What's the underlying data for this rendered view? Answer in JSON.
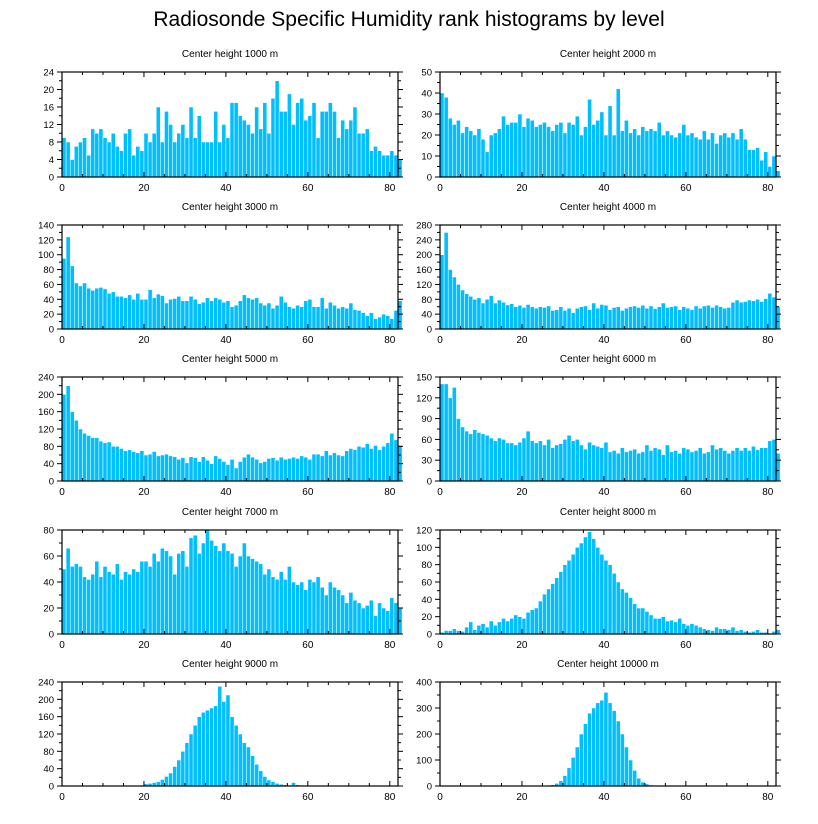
{
  "title": "Radiosonde Specific Humidity rank histograms by level",
  "colors": {
    "bar": "#00BFFF",
    "bar_edge": "#ffffff",
    "axis": "#000000",
    "background": "#ffffff"
  },
  "chart_data": [
    {
      "type": "bar",
      "title": "Center height 1000 m",
      "xlim": [
        0,
        82
      ],
      "ylim": [
        0,
        24
      ],
      "xticks": [
        0,
        20,
        40,
        60,
        80
      ],
      "yticks": [
        0,
        4,
        8,
        12,
        16,
        20,
        24
      ],
      "values": [
        9,
        8,
        4,
        7,
        8,
        9,
        5,
        11,
        10,
        11,
        9,
        8,
        10,
        7,
        6,
        10,
        11,
        5,
        7,
        6,
        10,
        8,
        10,
        16,
        8,
        15,
        12,
        8,
        10,
        12,
        9,
        16,
        9,
        14,
        8,
        8,
        8,
        15,
        8,
        12,
        9,
        17,
        17,
        14,
        13,
        12,
        10,
        16,
        11,
        17,
        10,
        18,
        22,
        15,
        15,
        19,
        12,
        17,
        18,
        13,
        14,
        17,
        9,
        15,
        15,
        17,
        15,
        9,
        13,
        11,
        13,
        16,
        10,
        10,
        11,
        6,
        7,
        6,
        5,
        5,
        6,
        5,
        4
      ]
    },
    {
      "type": "bar",
      "title": "Center height 2000 m",
      "xlim": [
        0,
        82
      ],
      "ylim": [
        0,
        50
      ],
      "xticks": [
        0,
        20,
        40,
        60,
        80
      ],
      "yticks": [
        0,
        10,
        20,
        30,
        40,
        50
      ],
      "values": [
        40,
        38,
        28,
        25,
        27,
        21,
        24,
        22,
        20,
        23,
        18,
        12,
        20,
        21,
        23,
        29,
        25,
        26,
        26,
        30,
        24,
        28,
        27,
        24,
        25,
        26,
        24,
        22,
        25,
        26,
        21,
        26,
        25,
        29,
        20,
        24,
        37,
        25,
        27,
        31,
        20,
        34,
        20,
        42,
        22,
        27,
        21,
        23,
        20,
        24,
        22,
        23,
        22,
        26,
        20,
        22,
        20,
        19,
        21,
        25,
        20,
        21,
        19,
        18,
        22,
        18,
        21,
        16,
        20,
        21,
        19,
        21,
        18,
        23,
        18,
        13,
        13,
        14,
        8,
        12,
        5,
        10,
        3
      ]
    },
    {
      "type": "bar",
      "title": "Center height 3000 m",
      "xlim": [
        0,
        82
      ],
      "ylim": [
        0,
        140
      ],
      "xticks": [
        0,
        20,
        40,
        60,
        80
      ],
      "yticks": [
        0,
        20,
        40,
        60,
        80,
        100,
        120,
        140
      ],
      "values": [
        95,
        124,
        85,
        62,
        58,
        62,
        55,
        52,
        55,
        56,
        54,
        48,
        50,
        44,
        44,
        42,
        46,
        40,
        48,
        40,
        40,
        53,
        42,
        47,
        45,
        35,
        40,
        41,
        44,
        38,
        38,
        44,
        40,
        34,
        36,
        42,
        38,
        42,
        40,
        36,
        38,
        30,
        32,
        38,
        46,
        42,
        40,
        42,
        35,
        32,
        35,
        28,
        32,
        44,
        36,
        30,
        28,
        32,
        30,
        38,
        40,
        30,
        30,
        42,
        28,
        36,
        32,
        28,
        30,
        28,
        35,
        26,
        25,
        22,
        18,
        22,
        14,
        16,
        20,
        18,
        14,
        25,
        38
      ]
    },
    {
      "type": "bar",
      "title": "Center height 4000 m",
      "xlim": [
        0,
        82
      ],
      "ylim": [
        0,
        280
      ],
      "xticks": [
        0,
        20,
        40,
        60,
        80
      ],
      "yticks": [
        0,
        40,
        80,
        120,
        160,
        200,
        240,
        280
      ],
      "values": [
        200,
        260,
        160,
        140,
        120,
        105,
        95,
        88,
        80,
        84,
        70,
        80,
        90,
        70,
        78,
        72,
        65,
        68,
        60,
        64,
        58,
        66,
        60,
        56,
        60,
        58,
        62,
        50,
        52,
        60,
        50,
        56,
        44,
        56,
        60,
        62,
        52,
        70,
        56,
        66,
        64,
        52,
        58,
        60,
        50,
        56,
        60,
        62,
        58,
        64,
        56,
        62,
        55,
        60,
        70,
        58,
        60,
        62,
        52,
        60,
        56,
        52,
        62,
        56,
        62,
        64,
        58,
        64,
        60,
        56,
        58,
        72,
        78,
        72,
        74,
        78,
        76,
        80,
        74,
        82,
        96,
        86,
        60
      ]
    },
    {
      "type": "bar",
      "title": "Center height 5000 m",
      "xlim": [
        0,
        82
      ],
      "ylim": [
        0,
        240
      ],
      "xticks": [
        0,
        20,
        40,
        60,
        80
      ],
      "yticks": [
        0,
        40,
        80,
        120,
        160,
        200,
        240
      ],
      "values": [
        200,
        220,
        160,
        140,
        120,
        110,
        105,
        100,
        100,
        92,
        88,
        90,
        80,
        80,
        75,
        70,
        72,
        68,
        65,
        70,
        60,
        62,
        68,
        58,
        60,
        62,
        58,
        56,
        50,
        54,
        42,
        56,
        54,
        45,
        56,
        48,
        40,
        58,
        52,
        45,
        38,
        50,
        30,
        45,
        55,
        62,
        55,
        50,
        42,
        45,
        52,
        54,
        48,
        55,
        50,
        52,
        55,
        52,
        58,
        55,
        50,
        62,
        62,
        58,
        70,
        60,
        65,
        60,
        58,
        70,
        75,
        72,
        80,
        78,
        86,
        75,
        82,
        72,
        80,
        88,
        110,
        95,
        82
      ]
    },
    {
      "type": "bar",
      "title": "Center height 6000 m",
      "xlim": [
        0,
        82
      ],
      "ylim": [
        0,
        150
      ],
      "xticks": [
        0,
        20,
        40,
        60,
        80
      ],
      "yticks": [
        0,
        30,
        60,
        90,
        120,
        150
      ],
      "values": [
        140,
        140,
        120,
        135,
        90,
        78,
        72,
        68,
        74,
        70,
        68,
        66,
        62,
        58,
        62,
        60,
        55,
        55,
        52,
        56,
        62,
        72,
        58,
        55,
        58,
        52,
        60,
        48,
        52,
        54,
        60,
        66,
        58,
        60,
        52,
        46,
        56,
        52,
        50,
        48,
        56,
        42,
        44,
        40,
        48,
        42,
        44,
        46,
        40,
        42,
        52,
        44,
        48,
        46,
        38,
        52,
        42,
        44,
        40,
        48,
        46,
        42,
        44,
        48,
        40,
        42,
        52,
        46,
        48,
        44,
        40,
        44,
        48,
        44,
        48,
        44,
        50,
        45,
        48,
        48,
        58,
        60,
        40
      ]
    },
    {
      "type": "bar",
      "title": "Center height 7000 m",
      "xlim": [
        0,
        82
      ],
      "ylim": [
        0,
        80
      ],
      "xticks": [
        0,
        20,
        40,
        60,
        80
      ],
      "yticks": [
        0,
        20,
        40,
        60,
        80
      ],
      "values": [
        50,
        66,
        52,
        54,
        52,
        44,
        42,
        46,
        56,
        44,
        52,
        48,
        46,
        54,
        42,
        48,
        46,
        50,
        48,
        56,
        56,
        52,
        62,
        56,
        66,
        64,
        60,
        46,
        62,
        64,
        52,
        74,
        76,
        62,
        70,
        80,
        72,
        68,
        64,
        70,
        64,
        62,
        52,
        60,
        70,
        60,
        58,
        56,
        54,
        46,
        50,
        44,
        42,
        48,
        42,
        52,
        40,
        38,
        40,
        34,
        42,
        40,
        44,
        36,
        30,
        40,
        36,
        34,
        30,
        24,
        32,
        26,
        24,
        20,
        22,
        26,
        14,
        24,
        20,
        18,
        28,
        24,
        20
      ]
    },
    {
      "type": "bar",
      "title": "Center height 8000 m",
      "xlim": [
        0,
        82
      ],
      "ylim": [
        0,
        120
      ],
      "xticks": [
        0,
        20,
        40,
        60,
        80
      ],
      "yticks": [
        0,
        20,
        40,
        60,
        80,
        100,
        120
      ],
      "values": [
        2,
        4,
        4,
        6,
        4,
        3,
        8,
        14,
        5,
        10,
        12,
        8,
        15,
        10,
        14,
        18,
        15,
        18,
        22,
        20,
        18,
        25,
        28,
        30,
        38,
        46,
        52,
        58,
        65,
        72,
        80,
        85,
        92,
        100,
        105,
        112,
        118,
        110,
        100,
        92,
        85,
        80,
        70,
        60,
        52,
        48,
        42,
        35,
        30,
        30,
        26,
        22,
        18,
        18,
        20,
        15,
        16,
        14,
        18,
        12,
        10,
        12,
        10,
        8,
        6,
        5,
        4,
        8,
        6,
        6,
        5,
        8,
        4,
        5,
        3,
        2,
        3,
        5,
        2,
        2,
        1,
        3,
        5
      ]
    },
    {
      "type": "bar",
      "title": "Center height 9000 m",
      "xlim": [
        0,
        82
      ],
      "ylim": [
        0,
        240
      ],
      "xticks": [
        0,
        20,
        40,
        60,
        80
      ],
      "yticks": [
        0,
        40,
        80,
        120,
        160,
        200,
        240
      ],
      "values": [
        0,
        0,
        0,
        0,
        0,
        0,
        0,
        0,
        0,
        0,
        0,
        0,
        0,
        0,
        0,
        0,
        0,
        0,
        1,
        2,
        5,
        6,
        8,
        10,
        15,
        22,
        30,
        45,
        60,
        80,
        100,
        120,
        140,
        160,
        170,
        175,
        180,
        185,
        230,
        195,
        210,
        160,
        140,
        120,
        100,
        90,
        70,
        50,
        35,
        22,
        14,
        10,
        6,
        4,
        3,
        2,
        8,
        3,
        2,
        1,
        0,
        0,
        0,
        1,
        0,
        0,
        1,
        0,
        0,
        0,
        0,
        0,
        0,
        0,
        0,
        0,
        0,
        0,
        0,
        0,
        0,
        0,
        0
      ]
    },
    {
      "type": "bar",
      "title": "Center height 10000 m",
      "xlim": [
        0,
        82
      ],
      "ylim": [
        0,
        400
      ],
      "xticks": [
        0,
        20,
        40,
        60,
        80
      ],
      "yticks": [
        0,
        100,
        200,
        300,
        400
      ],
      "values": [
        0,
        0,
        0,
        0,
        0,
        0,
        0,
        0,
        0,
        0,
        0,
        0,
        0,
        0,
        0,
        0,
        0,
        0,
        0,
        0,
        0,
        0,
        0,
        0,
        0,
        0,
        2,
        5,
        10,
        20,
        40,
        70,
        110,
        150,
        200,
        240,
        280,
        300,
        320,
        330,
        360,
        320,
        290,
        250,
        200,
        150,
        100,
        60,
        30,
        15,
        8,
        4,
        2,
        1,
        0,
        0,
        0,
        1,
        0,
        0,
        0,
        0,
        0,
        0,
        0,
        0,
        0,
        0,
        0,
        0,
        0,
        0,
        0,
        0,
        0,
        0,
        0,
        0,
        0,
        0,
        0,
        0,
        0
      ]
    }
  ]
}
